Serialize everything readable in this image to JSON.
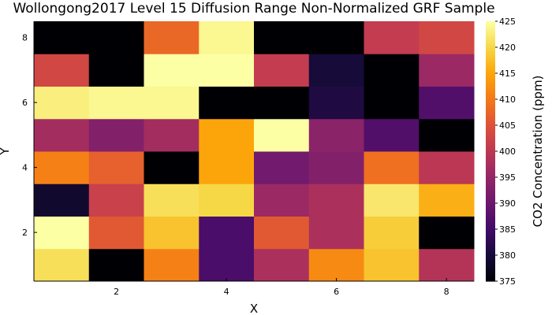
{
  "chart_data": {
    "type": "heatmap",
    "title": "Wollongong2017 Level 15 Diffusion Range Non-Normalized GRF Sample",
    "xlabel": "X",
    "ylabel": "Y",
    "colorbar_label": "CO2 Concentration (ppm)",
    "colormap": "inferno",
    "clim": [
      375,
      425
    ],
    "x": [
      1,
      2,
      3,
      4,
      5,
      6,
      7,
      8
    ],
    "y": [
      1,
      2,
      3,
      4,
      5,
      6,
      7,
      8
    ],
    "xticks": [
      2,
      4,
      6,
      8
    ],
    "yticks": [
      2,
      4,
      6,
      8
    ],
    "colorbar_ticks": [
      375,
      380,
      385,
      390,
      395,
      400,
      405,
      410,
      415,
      420,
      425
    ],
    "values": [
      [
        421,
        375,
        411,
        386,
        398,
        412,
        418,
        399
      ],
      [
        425,
        406,
        418,
        386,
        406,
        398,
        419,
        375
      ],
      [
        379,
        402,
        421,
        420,
        396,
        398,
        422,
        416
      ],
      [
        411,
        407,
        375,
        415,
        391,
        393,
        409,
        400
      ],
      [
        397,
        393,
        397,
        415,
        425,
        394,
        387,
        375
      ],
      [
        423,
        424,
        424,
        375,
        375,
        381,
        375,
        387
      ],
      [
        403,
        375,
        425,
        425,
        401,
        380,
        375,
        396
      ],
      [
        375,
        375,
        408,
        424,
        375,
        375,
        401,
        403
      ]
    ]
  }
}
